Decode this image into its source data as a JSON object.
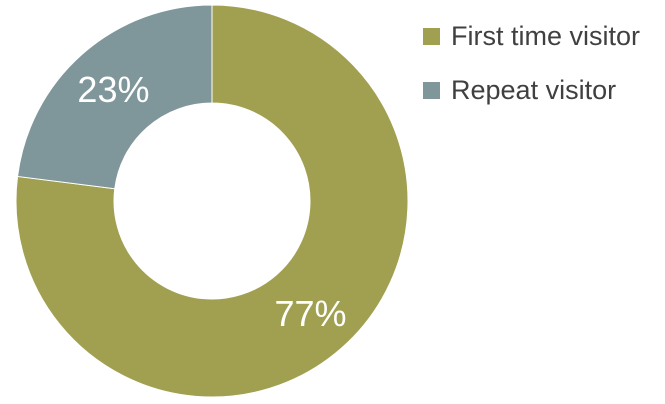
{
  "chart_data": {
    "type": "pie",
    "variant": "donut",
    "title": "",
    "categories": [
      "First time visitor",
      "Repeat visitor"
    ],
    "values": [
      77,
      23
    ],
    "labels": [
      "77%",
      "23%"
    ],
    "colors": [
      "#a0a050",
      "#7f969a"
    ],
    "label_color": "#ffffff",
    "legend_position": "right"
  },
  "legend": {
    "items": [
      {
        "label": "First time visitor",
        "color": "#a0a050"
      },
      {
        "label": "Repeat visitor",
        "color": "#7f969a"
      }
    ]
  }
}
